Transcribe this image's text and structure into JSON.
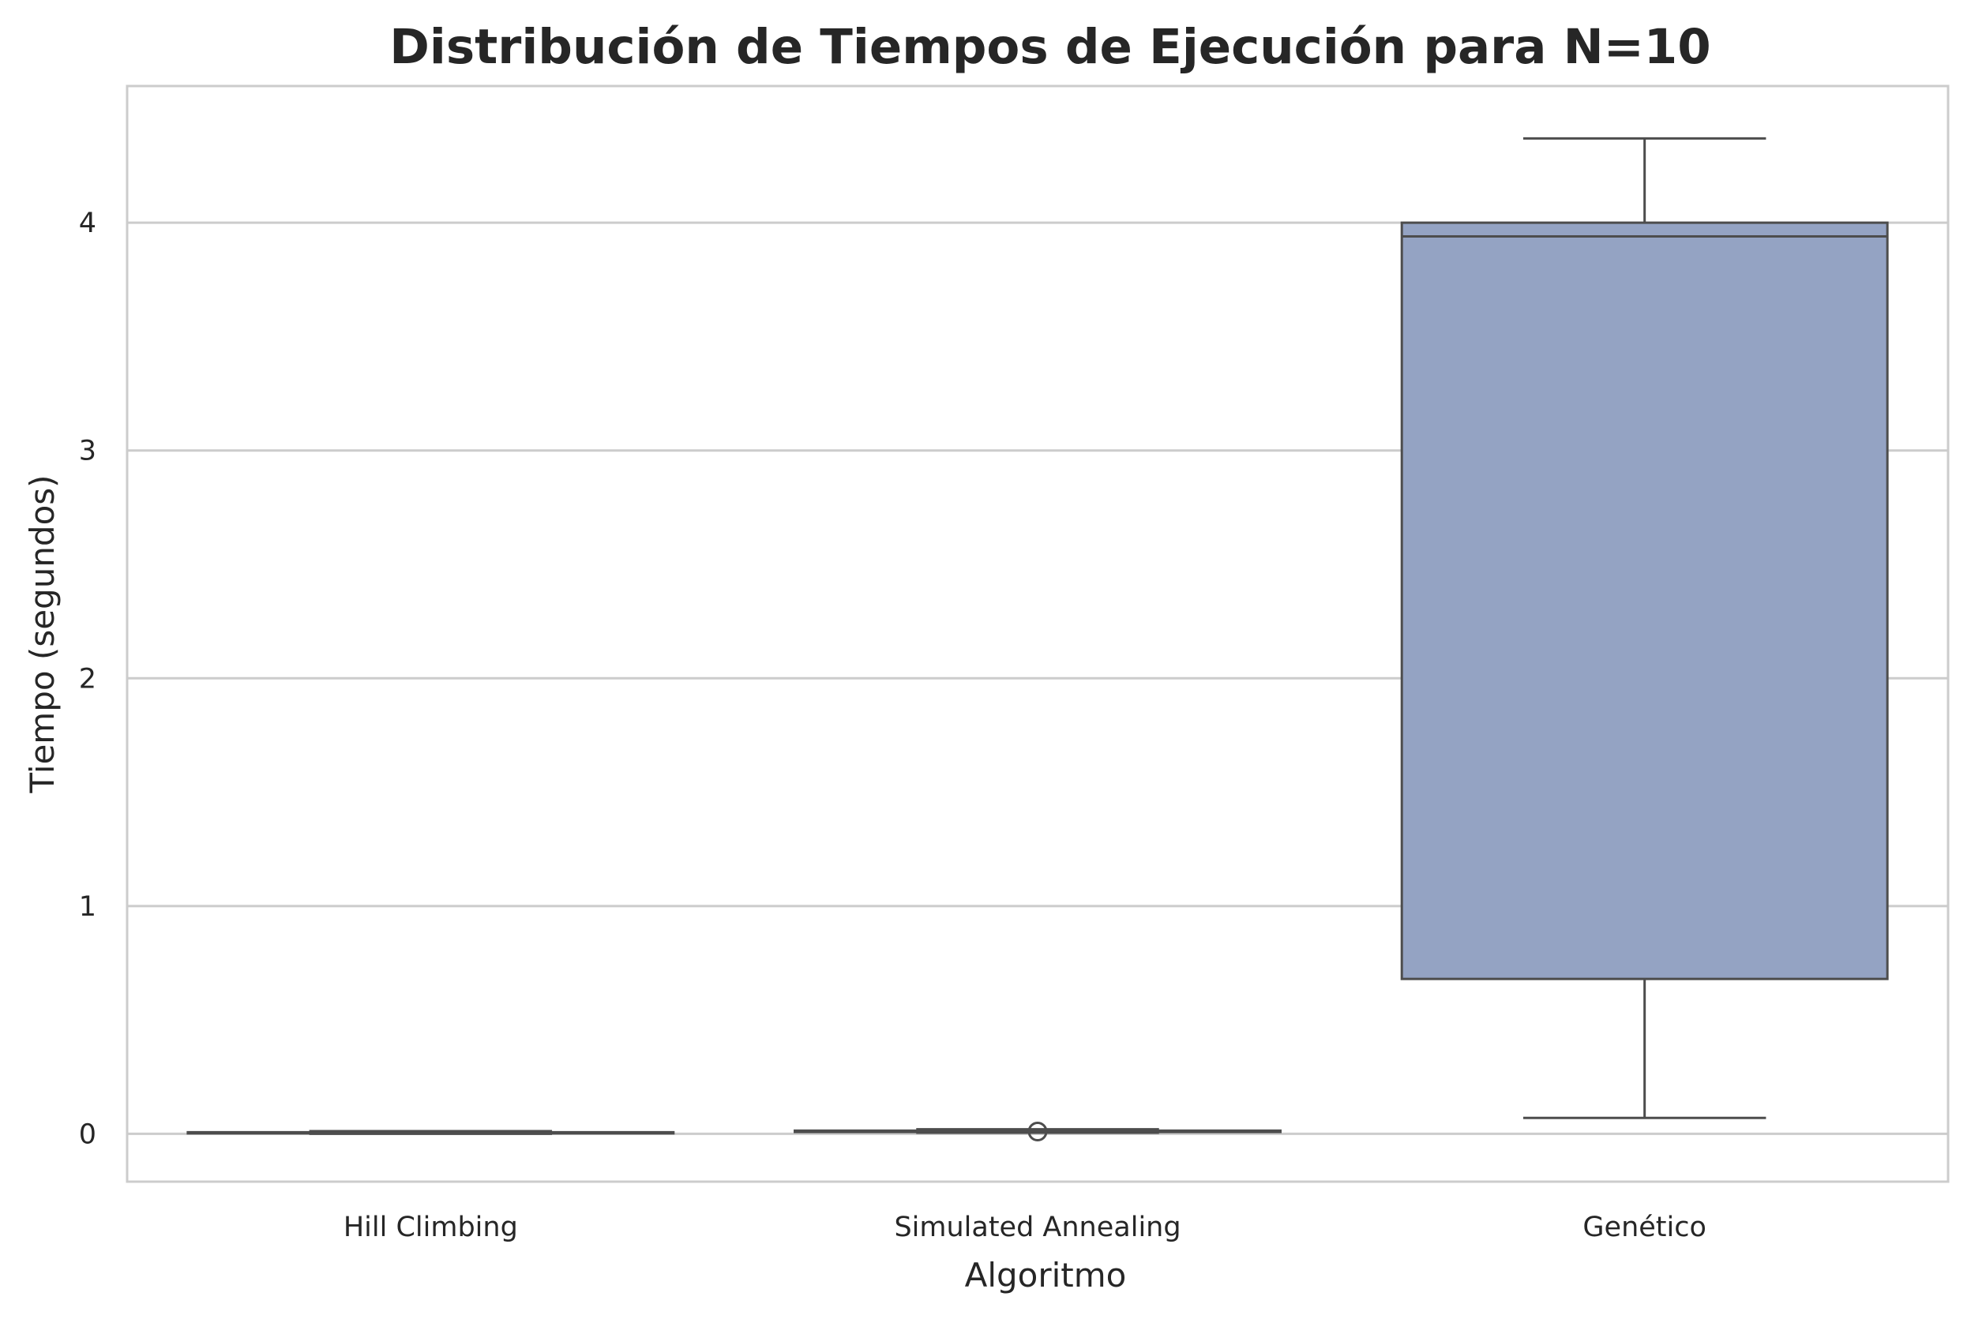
{
  "chart_data": {
    "type": "boxplot",
    "title": "Distribución de Tiempos de Ejecución para N=10",
    "xlabel": "Algoritmo",
    "ylabel": "Tiempo (segundos)",
    "categories": [
      "Hill Climbing",
      "Simulated Annealing",
      "Genético"
    ],
    "ylim": [
      -0.21,
      4.6
    ],
    "yticks": [
      0,
      1,
      2,
      3,
      4
    ],
    "grid": true,
    "boxes": [
      {
        "category": "Hill Climbing",
        "whisker_low": 0.0,
        "q1": 0.002,
        "median": 0.004,
        "q3": 0.007,
        "whisker_high": 0.012,
        "outliers": []
      },
      {
        "category": "Simulated Annealing",
        "whisker_low": 0.005,
        "q1": 0.008,
        "median": 0.011,
        "q3": 0.014,
        "whisker_high": 0.02,
        "outliers": [
          0.01
        ]
      },
      {
        "category": "Genético",
        "whisker_low": 0.07,
        "q1": 0.68,
        "median": 3.94,
        "q3": 4.0,
        "whisker_high": 4.37,
        "outliers": []
      }
    ],
    "colors": {
      "box_fill": [
        "#66c2a5",
        "#fc8d62",
        "#94a3c3"
      ],
      "line": "#4d4d4d",
      "grid": "#cccccc",
      "spine": "#cccccc"
    }
  }
}
